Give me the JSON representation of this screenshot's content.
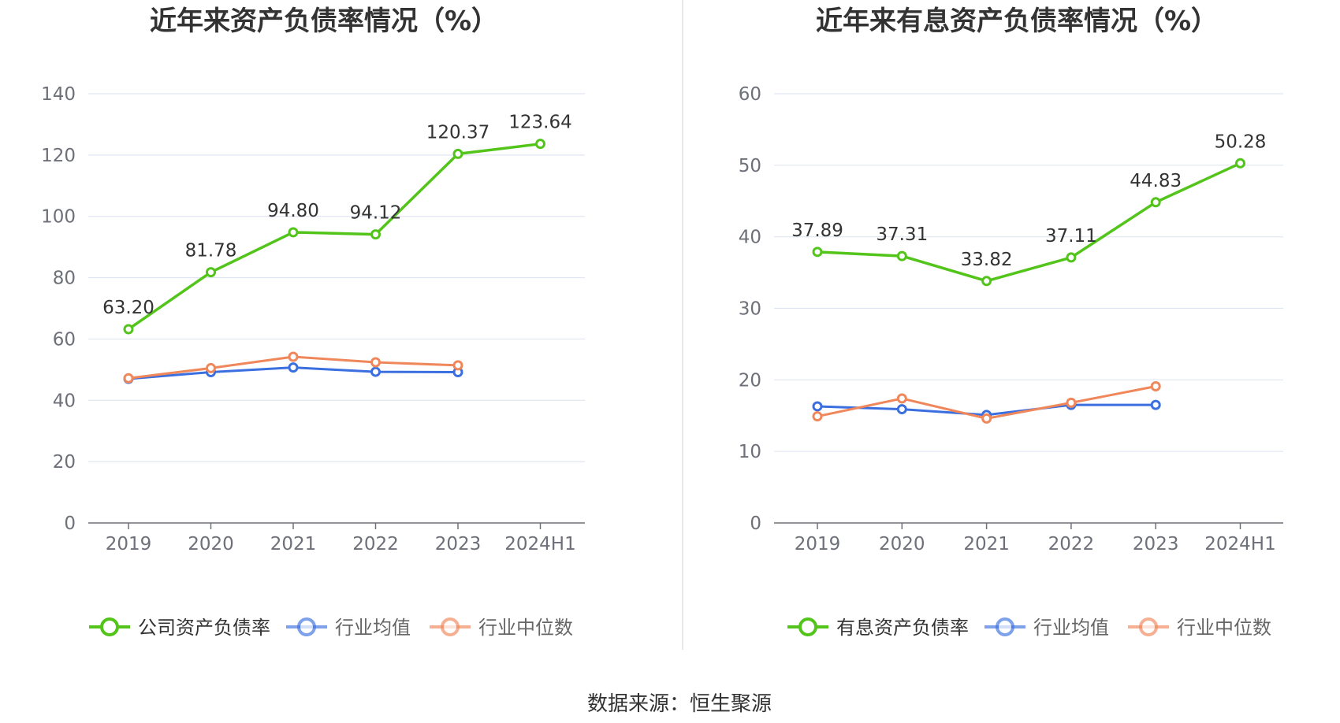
{
  "chart_data": [
    {
      "type": "line",
      "title": "近年来资产负债率情况（%）",
      "categories": [
        "2019",
        "2020",
        "2021",
        "2022",
        "2023",
        "2024H1"
      ],
      "ylim": [
        0,
        140
      ],
      "yticks": [
        0,
        20,
        40,
        60,
        80,
        100,
        120,
        140
      ],
      "grid": true,
      "legend_placement": "bottom",
      "series": [
        {
          "name": "公司资产负债率",
          "color": "#52c41a",
          "values": [
            63.2,
            81.78,
            94.8,
            94.12,
            120.37,
            123.64
          ],
          "labels": [
            "63.20",
            "81.78",
            "94.80",
            "94.12",
            "120.37",
            "123.64"
          ]
        },
        {
          "name": "行业均值",
          "color": "#3b6fe0",
          "values": [
            47.0,
            49.2,
            50.7,
            49.3,
            49.2,
            null
          ]
        },
        {
          "name": "行业中位数",
          "color": "#f0875a",
          "values": [
            47.2,
            50.5,
            54.2,
            52.4,
            51.4,
            null
          ]
        }
      ]
    },
    {
      "type": "line",
      "title": "近年来有息资产负债率情况（%）",
      "categories": [
        "2019",
        "2020",
        "2021",
        "2022",
        "2023",
        "2024H1"
      ],
      "ylim": [
        0,
        60
      ],
      "yticks": [
        0,
        10,
        20,
        30,
        40,
        50,
        60
      ],
      "grid": true,
      "legend_placement": "bottom",
      "series": [
        {
          "name": "有息资产负债率",
          "color": "#52c41a",
          "values": [
            37.89,
            37.31,
            33.82,
            37.11,
            44.83,
            50.28
          ],
          "labels": [
            "37.89",
            "37.31",
            "33.82",
            "37.11",
            "44.83",
            "50.28"
          ]
        },
        {
          "name": "行业均值",
          "color": "#3b6fe0",
          "values": [
            16.3,
            15.9,
            15.1,
            16.5,
            16.5,
            null
          ]
        },
        {
          "name": "行业中位数",
          "color": "#f0875a",
          "values": [
            14.9,
            17.4,
            14.6,
            16.8,
            19.1,
            null
          ]
        }
      ]
    }
  ],
  "source_text": "数据来源：恒生聚源",
  "colors": {
    "divider": "#e8e8e8",
    "grid": "#e0e6f1",
    "axis": "#6e7079"
  }
}
